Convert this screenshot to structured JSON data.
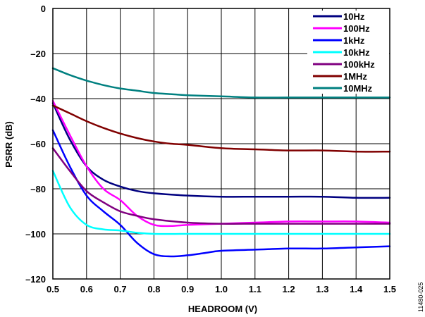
{
  "chart_data": {
    "type": "line",
    "xlabel": "HEADROOM (V)",
    "ylabel": "PSRR (dB)",
    "xlim": [
      0.5,
      1.5
    ],
    "ylim": [
      -120,
      0
    ],
    "xticks": [
      "0.5",
      "0.6",
      "0.7",
      "0.8",
      "0.9",
      "1.0",
      "1.1",
      "1.2",
      "1.3",
      "1.4",
      "1.5"
    ],
    "yticks": [
      "0",
      "–20",
      "–40",
      "–60",
      "–80",
      "–100",
      "–120"
    ],
    "grid": true,
    "legend_position": "top-right",
    "figure_id": "11480-025",
    "series": [
      {
        "name": "10Hz",
        "color": "#000080",
        "x": [
          0.5,
          0.55,
          0.6,
          0.65,
          0.7,
          0.75,
          0.8,
          0.9,
          1.0,
          1.1,
          1.2,
          1.3,
          1.4,
          1.5
        ],
        "y": [
          -42,
          -58,
          -70,
          -76,
          -79,
          -81,
          -82,
          -83,
          -83.5,
          -83.5,
          -83.5,
          -83.5,
          -84,
          -84
        ]
      },
      {
        "name": "100Hz",
        "color": "#ff00ff",
        "x": [
          0.5,
          0.55,
          0.6,
          0.65,
          0.7,
          0.75,
          0.8,
          0.85,
          0.9,
          1.0,
          1.1,
          1.2,
          1.3,
          1.4,
          1.5
        ],
        "y": [
          -41,
          -56,
          -70,
          -80,
          -85,
          -92,
          -96,
          -96.5,
          -96,
          -95.5,
          -95,
          -94.5,
          -94.5,
          -94.5,
          -95
        ]
      },
      {
        "name": "1kHz",
        "color": "#0000ff",
        "x": [
          0.5,
          0.55,
          0.6,
          0.65,
          0.7,
          0.75,
          0.8,
          0.85,
          0.9,
          0.95,
          1.0,
          1.1,
          1.2,
          1.3,
          1.4,
          1.5
        ],
        "y": [
          -54,
          -70,
          -83,
          -90,
          -96,
          -104,
          -109,
          -110,
          -109.5,
          -108.5,
          -107.5,
          -107,
          -106.5,
          -106.5,
          -106,
          -105.5
        ]
      },
      {
        "name": "10kHz",
        "color": "#00ffff",
        "x": [
          0.5,
          0.55,
          0.6,
          0.65,
          0.7,
          0.75,
          0.8,
          0.9,
          1.0,
          1.1,
          1.2,
          1.3,
          1.4,
          1.5
        ],
        "y": [
          -72,
          -88,
          -96,
          -98,
          -98.5,
          -99.5,
          -100,
          -100,
          -100,
          -100,
          -100,
          -100,
          -100,
          -100
        ]
      },
      {
        "name": "100kHz",
        "color": "#800080",
        "x": [
          0.5,
          0.55,
          0.6,
          0.65,
          0.7,
          0.75,
          0.8,
          0.9,
          1.0,
          1.1,
          1.2,
          1.3,
          1.4,
          1.5
        ],
        "y": [
          -62,
          -72,
          -81,
          -86,
          -90,
          -92,
          -93.5,
          -95,
          -95.5,
          -95.5,
          -95.5,
          -95.5,
          -95.5,
          -95.5
        ]
      },
      {
        "name": "1MHz",
        "color": "#800000",
        "x": [
          0.5,
          0.55,
          0.6,
          0.65,
          0.7,
          0.75,
          0.8,
          0.85,
          0.9,
          1.0,
          1.1,
          1.2,
          1.3,
          1.4,
          1.5
        ],
        "y": [
          -43,
          -46.5,
          -50,
          -53,
          -55.5,
          -57.5,
          -59,
          -60,
          -60.5,
          -62,
          -62.5,
          -63,
          -63,
          -63.5,
          -63.5
        ]
      },
      {
        "name": "10MHz",
        "color": "#008080",
        "x": [
          0.5,
          0.55,
          0.6,
          0.65,
          0.7,
          0.75,
          0.8,
          0.85,
          0.9,
          1.0,
          1.1,
          1.2,
          1.3,
          1.4,
          1.5
        ],
        "y": [
          -26.5,
          -29.5,
          -32,
          -34,
          -35.5,
          -36.5,
          -37.5,
          -38,
          -38.5,
          -39,
          -39.5,
          -39.5,
          -39.5,
          -39.5,
          -39.5
        ]
      }
    ]
  }
}
